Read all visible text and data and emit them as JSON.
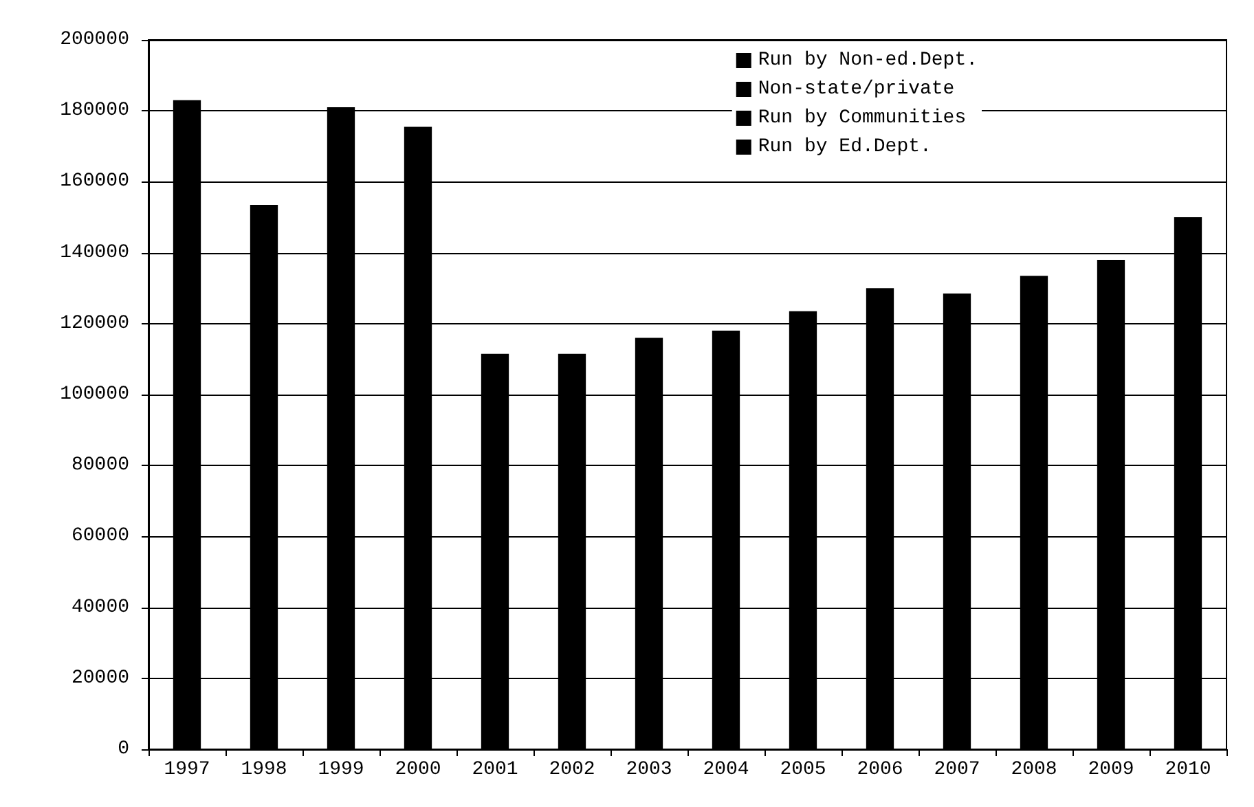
{
  "chart_data": {
    "type": "bar",
    "stacked": true,
    "categories": [
      "1997",
      "1998",
      "1999",
      "2000",
      "2001",
      "2002",
      "2003",
      "2004",
      "2005",
      "2006",
      "2007",
      "2008",
      "2009",
      "2010"
    ],
    "series": [
      {
        "name": "Run by Ed.Dept.",
        "color": "#000000",
        "values": [
          183000,
          153500,
          181000,
          175500,
          111500,
          111500,
          116000,
          118000,
          123500,
          130000,
          128500,
          133500,
          138000,
          150000
        ]
      },
      {
        "name": "Run by Communities",
        "color": "#000000",
        "values": [
          null,
          null,
          null,
          null,
          null,
          null,
          null,
          null,
          null,
          null,
          null,
          null,
          null,
          null
        ]
      },
      {
        "name": "Non-state/private",
        "color": "#000000",
        "values": [
          null,
          null,
          null,
          null,
          null,
          null,
          null,
          null,
          null,
          null,
          null,
          null,
          null,
          null
        ]
      },
      {
        "name": "Run by Non-ed.Dept.",
        "color": "#000000",
        "values": [
          null,
          null,
          null,
          null,
          null,
          null,
          null,
          null,
          null,
          null,
          null,
          null,
          null,
          null
        ]
      }
    ],
    "ylim": [
      0,
      200000
    ],
    "yticks": [
      0,
      20000,
      40000,
      60000,
      80000,
      100000,
      120000,
      140000,
      160000,
      180000,
      200000
    ],
    "grid": "y",
    "legend": "top right"
  }
}
